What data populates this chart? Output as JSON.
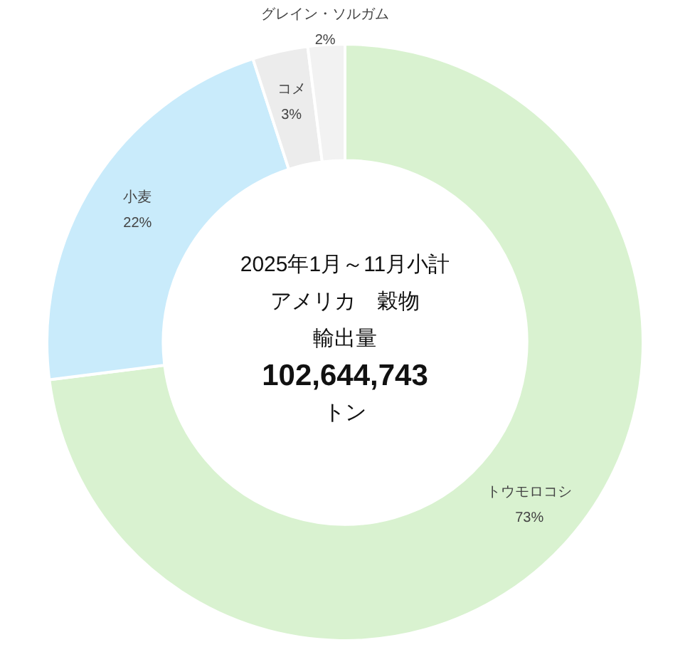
{
  "chart_data": {
    "type": "donut",
    "categories": [
      "トウモロコシ",
      "小麦",
      "コメ",
      "グレイン・ソルガム"
    ],
    "values": [
      73,
      22,
      3,
      2
    ],
    "colors": [
      "#d9f2d0",
      "#c9ebfb",
      "#ececec",
      "#f2f2f2"
    ],
    "value_labels": [
      "73%",
      "22%",
      "3%",
      "2%"
    ],
    "legend": false,
    "annotations": [
      "2025年1月～11月小計",
      "アメリカ　穀物",
      "輸出量",
      "102,644,743",
      "トン"
    ]
  }
}
